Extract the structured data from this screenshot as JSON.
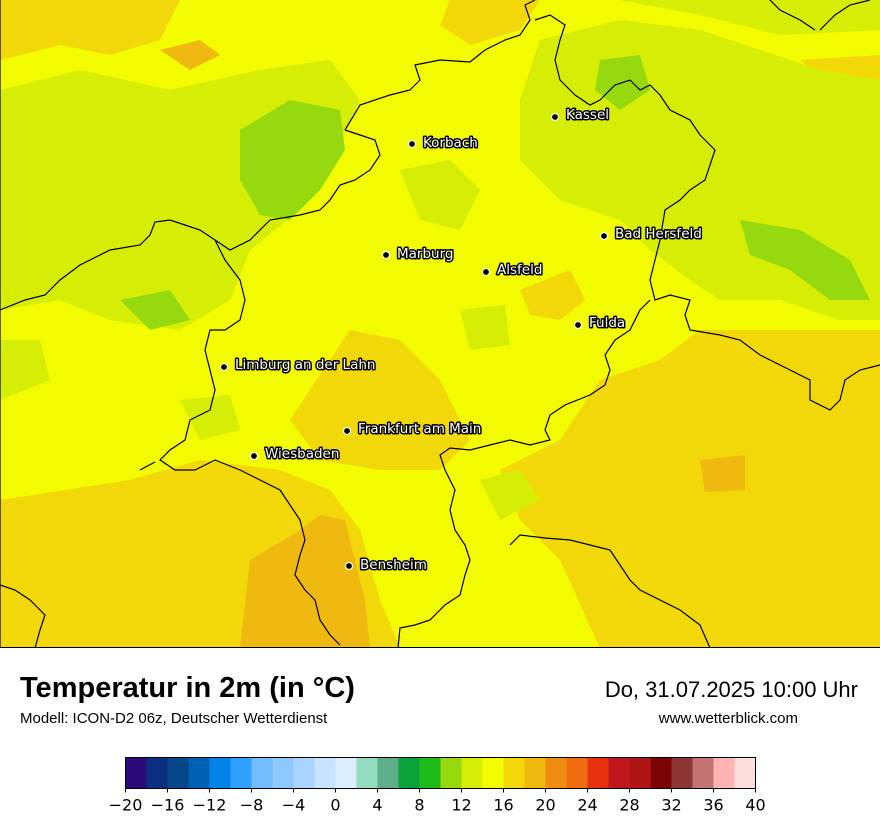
{
  "map": {
    "cities": [
      {
        "name": "Kassel"
      },
      {
        "name": "Korbach"
      },
      {
        "name": "Bad Hersfeld"
      },
      {
        "name": "Marburg"
      },
      {
        "name": "Alsfeld"
      },
      {
        "name": "Fulda"
      },
      {
        "name": "Limburg an der Lahn"
      },
      {
        "name": "Frankfurt am Main"
      },
      {
        "name": "Wiesbaden"
      },
      {
        "name": "Bensheim"
      }
    ]
  },
  "footer": {
    "title": "Temperatur in 2m (in °C)",
    "model": "Modell: ICON-D2 06z, Deutscher Wetterdienst",
    "datetime": "Do, 31.07.2025 10:00 Uhr",
    "website": "www.wetterblick.com"
  },
  "colorbar": {
    "min": -20,
    "max": 40,
    "ticks": [
      "−20",
      "−16",
      "−12",
      "−8",
      "−4",
      "0",
      "4",
      "8",
      "12",
      "16",
      "20",
      "24",
      "28",
      "32",
      "36",
      "40"
    ],
    "colors": [
      "#2c0a7a",
      "#0a2f80",
      "#08468a",
      "#0061b4",
      "#0283e8",
      "#2fa0ff",
      "#73bdff",
      "#8ec8ff",
      "#a9d4ff",
      "#c8e3ff",
      "#dbeeff",
      "#93dcc0",
      "#5eae8a",
      "#0aa33a",
      "#1fbb1a",
      "#97d90f",
      "#d6ee05",
      "#f2fb00",
      "#f2d808",
      "#f0b90f",
      "#f08c10",
      "#ef6c10",
      "#e6300e",
      "#c0171c",
      "#b01414",
      "#7a0404",
      "#8c3535",
      "#c47373",
      "#ffb3b3",
      "#ffdede"
    ]
  }
}
